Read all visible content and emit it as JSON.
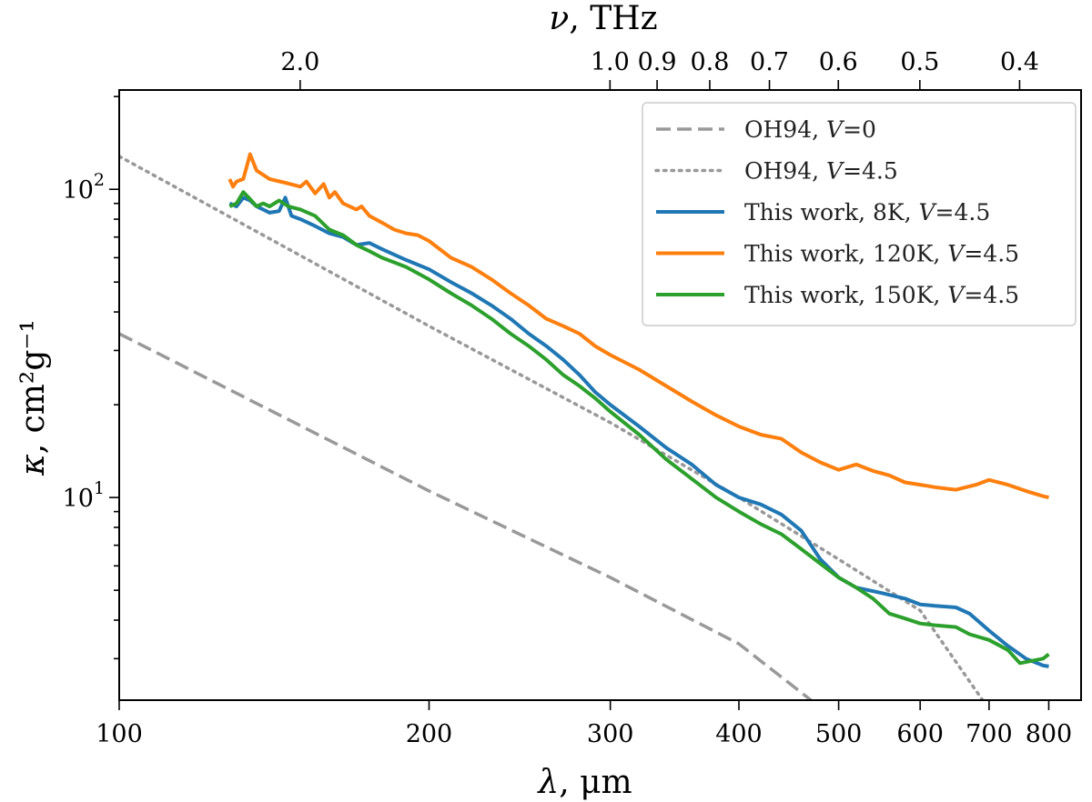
{
  "chart_data": {
    "type": "line",
    "xscale": "log",
    "yscale": "log",
    "xlim": [
      100,
      860
    ],
    "ylim": [
      2.2,
      210
    ],
    "xlabel": {
      "symbol": "λ",
      "unit": ", μm"
    },
    "ylabel": {
      "symbol": "κ",
      "unit": ", cm²g⁻¹"
    },
    "top_axis": {
      "label": {
        "symbol": "ν",
        "unit": ", THz"
      }
    },
    "x_ticks": [
      {
        "value": 100,
        "label": "100"
      },
      {
        "value": 200,
        "label": "200"
      },
      {
        "value": 300,
        "label": "300"
      },
      {
        "value": 400,
        "label": "400"
      },
      {
        "value": 500,
        "label": "500"
      },
      {
        "value": 600,
        "label": "600"
      },
      {
        "value": 700,
        "label": "700"
      },
      {
        "value": 800,
        "label": "800"
      }
    ],
    "top_ticks": [
      {
        "value": 0.4,
        "label": "0.4"
      },
      {
        "value": 0.5,
        "label": "0.5"
      },
      {
        "value": 0.6,
        "label": "0.6"
      },
      {
        "value": 0.7,
        "label": "0.7"
      },
      {
        "value": 0.8,
        "label": "0.8"
      },
      {
        "value": 0.9,
        "label": "0.9"
      },
      {
        "value": 1.0,
        "label": "1.0"
      },
      {
        "value": 2.0,
        "label": "2.0"
      }
    ],
    "y_ticks": [
      {
        "value": 10,
        "base": "10",
        "exp": "1"
      },
      {
        "value": 100,
        "base": "10",
        "exp": "2"
      }
    ],
    "legend_position": "top-right",
    "series": [
      {
        "name": "OH94, V=0",
        "label_parts": {
          "prefix": "OH94, ",
          "var": "V",
          "suffix": "=0"
        },
        "color": "#999999",
        "style": "dashed",
        "points": [
          [
            100,
            34
          ],
          [
            200,
            10.5
          ],
          [
            300,
            5.5
          ],
          [
            400,
            3.35
          ],
          [
            470,
            2.2
          ]
        ]
      },
      {
        "name": "OH94, V=4.5",
        "label_parts": {
          "prefix": "OH94, ",
          "var": "V",
          "suffix": "=4.5"
        },
        "color": "#999999",
        "style": "dotted",
        "points": [
          [
            100,
            128
          ],
          [
            200,
            36
          ],
          [
            300,
            17.5
          ],
          [
            400,
            10
          ],
          [
            500,
            6.3
          ],
          [
            600,
            4.3
          ],
          [
            690,
            2.2
          ]
        ]
      },
      {
        "name": "This work, 8K, V=4.5",
        "label_parts": {
          "prefix": "This work,  8K, ",
          "var": "V",
          "suffix": "=4.5"
        },
        "color": "#1f77b4",
        "style": "solid",
        "points": [
          [
            128,
            90
          ],
          [
            130,
            88
          ],
          [
            132,
            94
          ],
          [
            134,
            92
          ],
          [
            136,
            88
          ],
          [
            138,
            86
          ],
          [
            140,
            84
          ],
          [
            143,
            85
          ],
          [
            145,
            94
          ],
          [
            147,
            82
          ],
          [
            150,
            80
          ],
          [
            155,
            76
          ],
          [
            160,
            72
          ],
          [
            165,
            70
          ],
          [
            170,
            66
          ],
          [
            175,
            67
          ],
          [
            180,
            64
          ],
          [
            190,
            59
          ],
          [
            200,
            55
          ],
          [
            210,
            50
          ],
          [
            220,
            46
          ],
          [
            230,
            42
          ],
          [
            240,
            38
          ],
          [
            250,
            34
          ],
          [
            260,
            31
          ],
          [
            270,
            28
          ],
          [
            280,
            25
          ],
          [
            290,
            22
          ],
          [
            300,
            20
          ],
          [
            320,
            17
          ],
          [
            340,
            14.5
          ],
          [
            360,
            12.8
          ],
          [
            380,
            11
          ],
          [
            400,
            10
          ],
          [
            420,
            9.5
          ],
          [
            440,
            8.8
          ],
          [
            460,
            7.8
          ],
          [
            480,
            6.3
          ],
          [
            500,
            5.5
          ],
          [
            520,
            5.1
          ],
          [
            550,
            4.9
          ],
          [
            580,
            4.7
          ],
          [
            600,
            4.5
          ],
          [
            620,
            4.45
          ],
          [
            650,
            4.4
          ],
          [
            670,
            4.2
          ],
          [
            700,
            3.7
          ],
          [
            730,
            3.3
          ],
          [
            760,
            3.0
          ],
          [
            790,
            2.85
          ],
          [
            800,
            2.83
          ]
        ]
      },
      {
        "name": "This work, 120K, V=4.5",
        "label_parts": {
          "prefix": "This work,  120K, ",
          "var": "V",
          "suffix": "=4.5"
        },
        "color": "#ff7f0e",
        "style": "solid",
        "points": [
          [
            128,
            108
          ],
          [
            129,
            102
          ],
          [
            130,
            106
          ],
          [
            132,
            108
          ],
          [
            134,
            130
          ],
          [
            136,
            115
          ],
          [
            140,
            108
          ],
          [
            145,
            105
          ],
          [
            150,
            102
          ],
          [
            152,
            106
          ],
          [
            155,
            97
          ],
          [
            158,
            104
          ],
          [
            160,
            94
          ],
          [
            162,
            98
          ],
          [
            165,
            90
          ],
          [
            170,
            86
          ],
          [
            172,
            88
          ],
          [
            175,
            82
          ],
          [
            180,
            78
          ],
          [
            185,
            74
          ],
          [
            190,
            72
          ],
          [
            195,
            71
          ],
          [
            200,
            68
          ],
          [
            210,
            60
          ],
          [
            220,
            56
          ],
          [
            230,
            51
          ],
          [
            240,
            46
          ],
          [
            250,
            42
          ],
          [
            260,
            38
          ],
          [
            270,
            36
          ],
          [
            280,
            34
          ],
          [
            290,
            31
          ],
          [
            300,
            29
          ],
          [
            320,
            26
          ],
          [
            340,
            23
          ],
          [
            360,
            20.5
          ],
          [
            380,
            18.5
          ],
          [
            400,
            17
          ],
          [
            420,
            16
          ],
          [
            440,
            15.5
          ],
          [
            460,
            14
          ],
          [
            480,
            13
          ],
          [
            500,
            12.3
          ],
          [
            520,
            12.8
          ],
          [
            540,
            12.2
          ],
          [
            560,
            11.8
          ],
          [
            580,
            11.2
          ],
          [
            600,
            11.0
          ],
          [
            620,
            10.8
          ],
          [
            650,
            10.6
          ],
          [
            680,
            11.0
          ],
          [
            700,
            11.4
          ],
          [
            730,
            11.0
          ],
          [
            760,
            10.5
          ],
          [
            790,
            10.1
          ],
          [
            800,
            10.0
          ]
        ]
      },
      {
        "name": "This work, 150K, V=4.5",
        "label_parts": {
          "prefix": "This work,  150K, ",
          "var": "V",
          "suffix": "=4.5"
        },
        "color": "#2ca02c",
        "style": "solid",
        "points": [
          [
            128,
            88
          ],
          [
            130,
            90
          ],
          [
            132,
            98
          ],
          [
            134,
            93
          ],
          [
            136,
            88
          ],
          [
            138,
            90
          ],
          [
            140,
            88
          ],
          [
            143,
            92
          ],
          [
            146,
            88
          ],
          [
            150,
            86
          ],
          [
            155,
            82
          ],
          [
            160,
            74
          ],
          [
            165,
            71
          ],
          [
            170,
            66
          ],
          [
            175,
            63
          ],
          [
            180,
            60
          ],
          [
            190,
            56
          ],
          [
            200,
            51
          ],
          [
            210,
            46
          ],
          [
            220,
            42
          ],
          [
            230,
            38
          ],
          [
            240,
            34
          ],
          [
            250,
            31
          ],
          [
            260,
            28
          ],
          [
            270,
            25
          ],
          [
            280,
            23
          ],
          [
            290,
            21
          ],
          [
            300,
            19
          ],
          [
            320,
            16
          ],
          [
            340,
            13.3
          ],
          [
            360,
            11.5
          ],
          [
            380,
            10
          ],
          [
            400,
            9.0
          ],
          [
            420,
            8.2
          ],
          [
            440,
            7.6
          ],
          [
            460,
            6.8
          ],
          [
            480,
            6.1
          ],
          [
            500,
            5.5
          ],
          [
            520,
            5.1
          ],
          [
            540,
            4.7
          ],
          [
            560,
            4.2
          ],
          [
            580,
            4.05
          ],
          [
            600,
            3.9
          ],
          [
            620,
            3.85
          ],
          [
            650,
            3.8
          ],
          [
            670,
            3.6
          ],
          [
            700,
            3.45
          ],
          [
            730,
            3.2
          ],
          [
            750,
            2.9
          ],
          [
            770,
            2.95
          ],
          [
            790,
            3.0
          ],
          [
            800,
            3.1
          ]
        ]
      }
    ]
  }
}
